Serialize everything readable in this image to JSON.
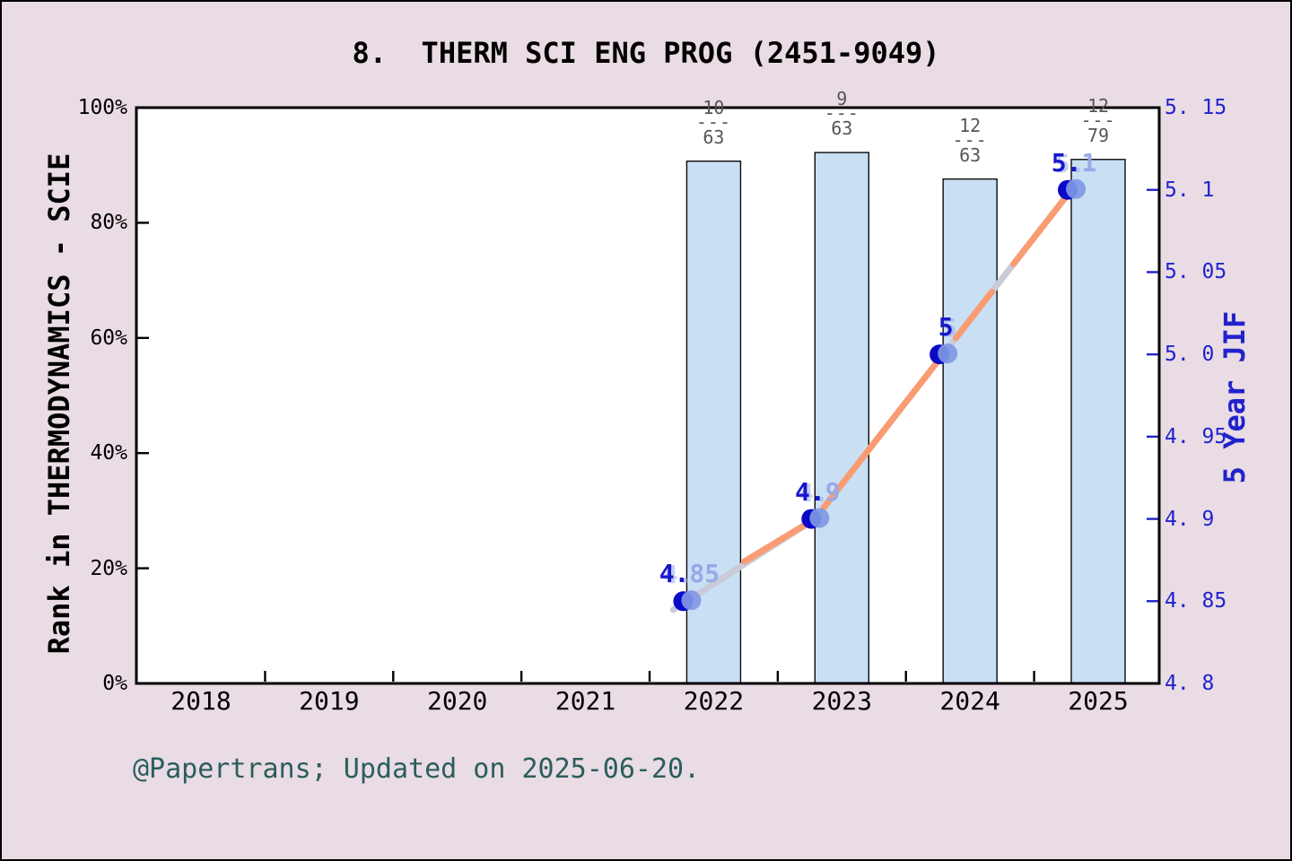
{
  "chart_data": {
    "type": "bar+line",
    "title": "8.  THERM SCI ENG PROG (2451-9049)",
    "x_axis": {
      "categories": [
        "2018",
        "2019",
        "2020",
        "2021",
        "2022",
        "2023",
        "2024",
        "2025"
      ]
    },
    "left_axis": {
      "label": "Rank in THERMODYNAMICS - SCIE",
      "range": [
        0,
        100
      ],
      "unit": "%",
      "ticks": [
        {
          "label": "0%",
          "value": 0
        },
        {
          "label": "20%",
          "value": 20
        },
        {
          "label": "40%",
          "value": 40
        },
        {
          "label": "60%",
          "value": 60
        },
        {
          "label": "80%",
          "value": 80
        },
        {
          "label": "100%",
          "value": 100
        }
      ]
    },
    "right_axis": {
      "label": "5 Year JIF",
      "range": [
        4.8,
        5.15
      ],
      "ticks": [
        {
          "label": "4. 8",
          "value": 4.8
        },
        {
          "label": "4. 85",
          "value": 4.85
        },
        {
          "label": "4. 9",
          "value": 4.9
        },
        {
          "label": "4. 95",
          "value": 4.95
        },
        {
          "label": "5. 0",
          "value": 5.0
        },
        {
          "label": "5. 05",
          "value": 5.05
        },
        {
          "label": "5. 1",
          "value": 5.1
        },
        {
          "label": "5. 15",
          "value": 5.15
        }
      ]
    },
    "bars": [
      {
        "year": "2022",
        "rank": "10",
        "total": "63",
        "dash": "---",
        "top_pct": 90.7
      },
      {
        "year": "2023",
        "rank": "9",
        "total": "63",
        "dash": "---",
        "top_pct": 92.2
      },
      {
        "year": "2024",
        "rank": "12",
        "total": "63",
        "dash": "---",
        "top_pct": 87.6
      },
      {
        "year": "2025",
        "rank": "12",
        "total": "79",
        "dash": "---",
        "top_pct": 91.0
      }
    ],
    "line_series": {
      "name": "5 Year JIF",
      "points": [
        {
          "year": "2022",
          "value": 4.85,
          "label_dark": "4.",
          "label_light": "85"
        },
        {
          "year": "2023",
          "value": 4.9,
          "label_dark": "4.",
          "label_light": "9"
        },
        {
          "year": "2024",
          "value": 5.0,
          "label_dark": "5",
          "label_light": ""
        },
        {
          "year": "2025",
          "value": 5.1,
          "label_dark": "5.",
          "label_light": "1"
        }
      ]
    },
    "colors": {
      "background": "#E9DCE4",
      "plot_background": "#FFFFFF",
      "bar_fill": "#C9DFF3",
      "bar_edge": "#0A0A0A",
      "line_orange": "#FA9C73",
      "line_gray": "#CACAD8",
      "marker_dark_blue": "#0909C8",
      "marker_light_blue": "#8098E4",
      "right_axis_blue": "#2222CC",
      "label_dark_blue": "#1717CE",
      "label_light_blue": "#95AAE9",
      "fraction_gray": "#56565A",
      "footer_teal": "#2B5D5D"
    }
  },
  "footer": {
    "text": "@Papertrans; Updated on 2025-06-20."
  }
}
